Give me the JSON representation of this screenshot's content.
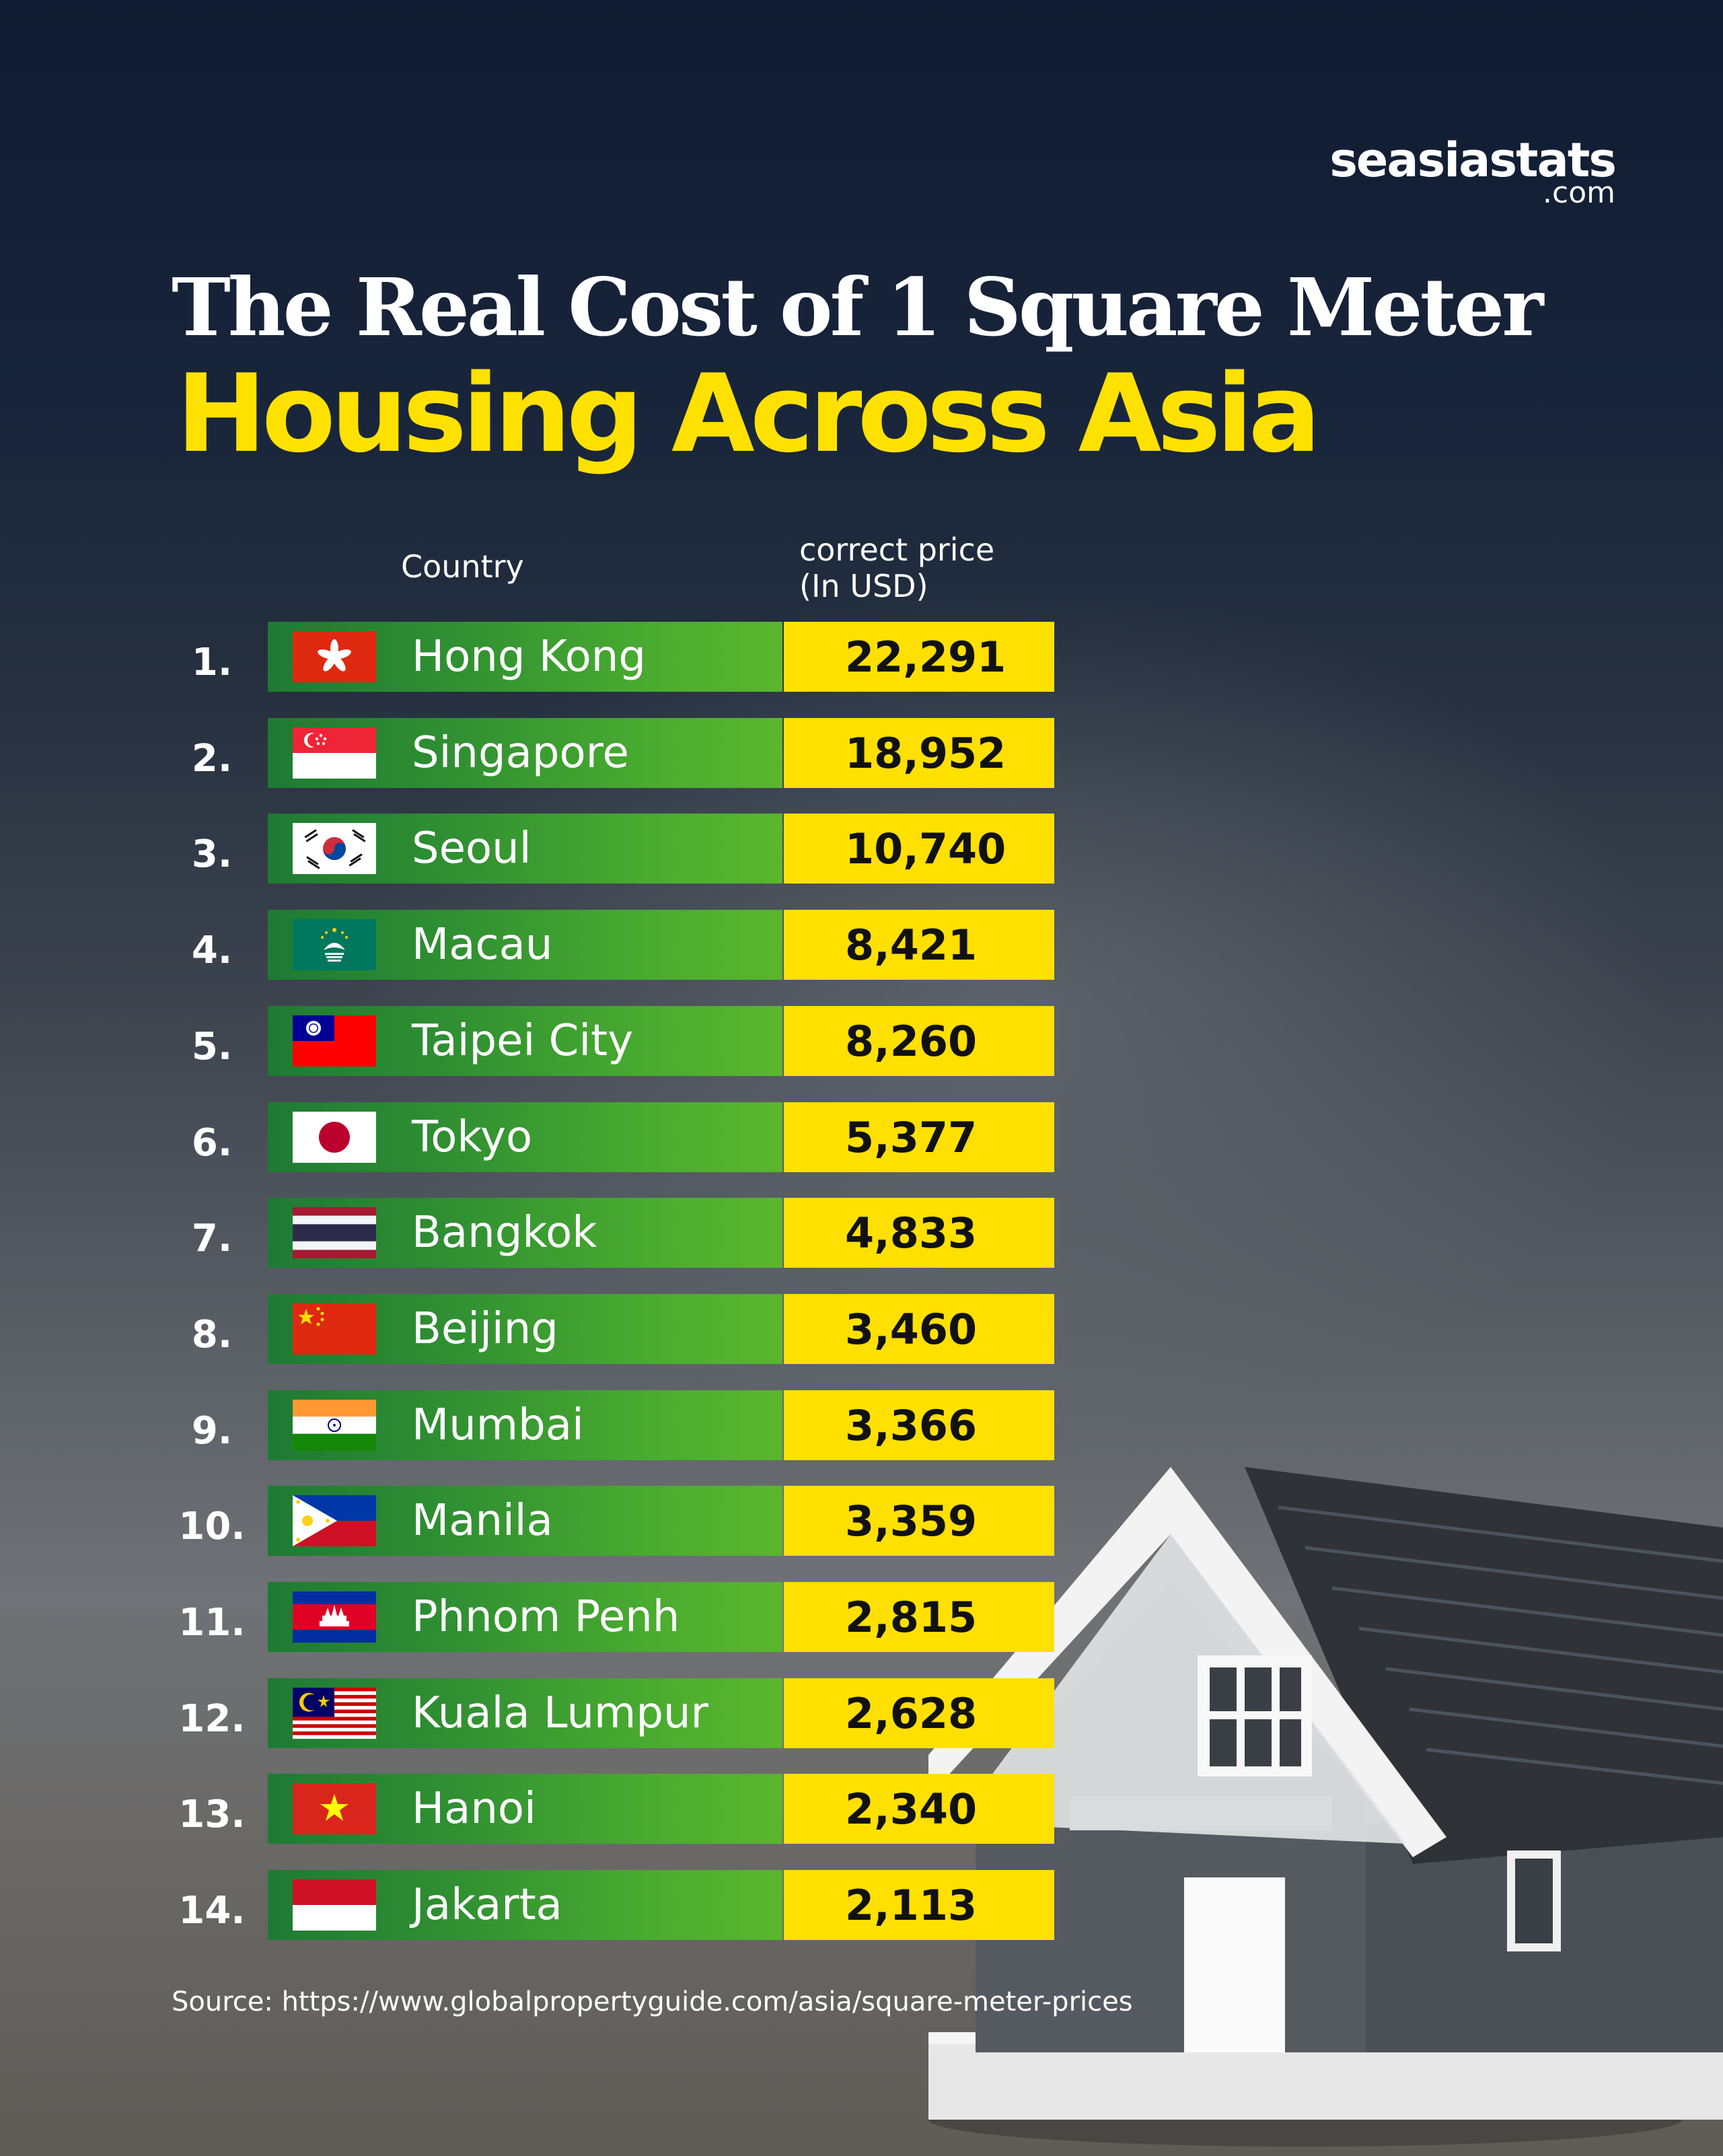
{
  "brand": {
    "name": "seasiastats",
    "tld": ".com"
  },
  "title": {
    "line1": "The Real Cost of 1 Square Meter",
    "line2": "Housing Across Asia"
  },
  "chart_data": {
    "type": "table",
    "column_headers": {
      "country": "Country",
      "price_line1": "correct price",
      "price_line2": "(In USD)"
    },
    "rows": [
      {
        "rank": "1.",
        "city": "Hong Kong",
        "flag": "hong-kong-flag",
        "price": "22,291",
        "value": 22291
      },
      {
        "rank": "2.",
        "city": "Singapore",
        "flag": "singapore-flag",
        "price": "18,952",
        "value": 18952
      },
      {
        "rank": "3.",
        "city": "Seoul",
        "flag": "south-korea-flag",
        "price": "10,740",
        "value": 10740
      },
      {
        "rank": "4.",
        "city": "Macau",
        "flag": "macau-flag",
        "price": "8,421",
        "value": 8421
      },
      {
        "rank": "5.",
        "city": "Taipei City",
        "flag": "taiwan-flag",
        "price": "8,260",
        "value": 8260
      },
      {
        "rank": "6.",
        "city": "Tokyo",
        "flag": "japan-flag",
        "price": "5,377",
        "value": 5377
      },
      {
        "rank": "7.",
        "city": "Bangkok",
        "flag": "thailand-flag",
        "price": "4,833",
        "value": 4833
      },
      {
        "rank": "8.",
        "city": "Beijing",
        "flag": "china-flag",
        "price": "3,460",
        "value": 3460
      },
      {
        "rank": "9.",
        "city": "Mumbai",
        "flag": "india-flag",
        "price": "3,366",
        "value": 3366
      },
      {
        "rank": "10.",
        "city": "Manila",
        "flag": "philippines-flag",
        "price": "3,359",
        "value": 3359
      },
      {
        "rank": "11.",
        "city": "Phnom Penh",
        "flag": "cambodia-flag",
        "price": "2,815",
        "value": 2815
      },
      {
        "rank": "12.",
        "city": "Kuala Lumpur",
        "flag": "malaysia-flag",
        "price": "2,628",
        "value": 2628
      },
      {
        "rank": "13.",
        "city": "Hanoi",
        "flag": "vietnam-flag",
        "price": "2,340",
        "value": 2340
      },
      {
        "rank": "14.",
        "city": "Jakarta",
        "flag": "indonesia-flag",
        "price": "2,113",
        "value": 2113
      }
    ]
  },
  "source": "Source: https://www.globalpropertyguide.com/asia/square-meter-prices",
  "colors": {
    "title_accent": "#ffe100",
    "bar_green": "#3a9a30",
    "bar_yellow": "#ffe000"
  }
}
